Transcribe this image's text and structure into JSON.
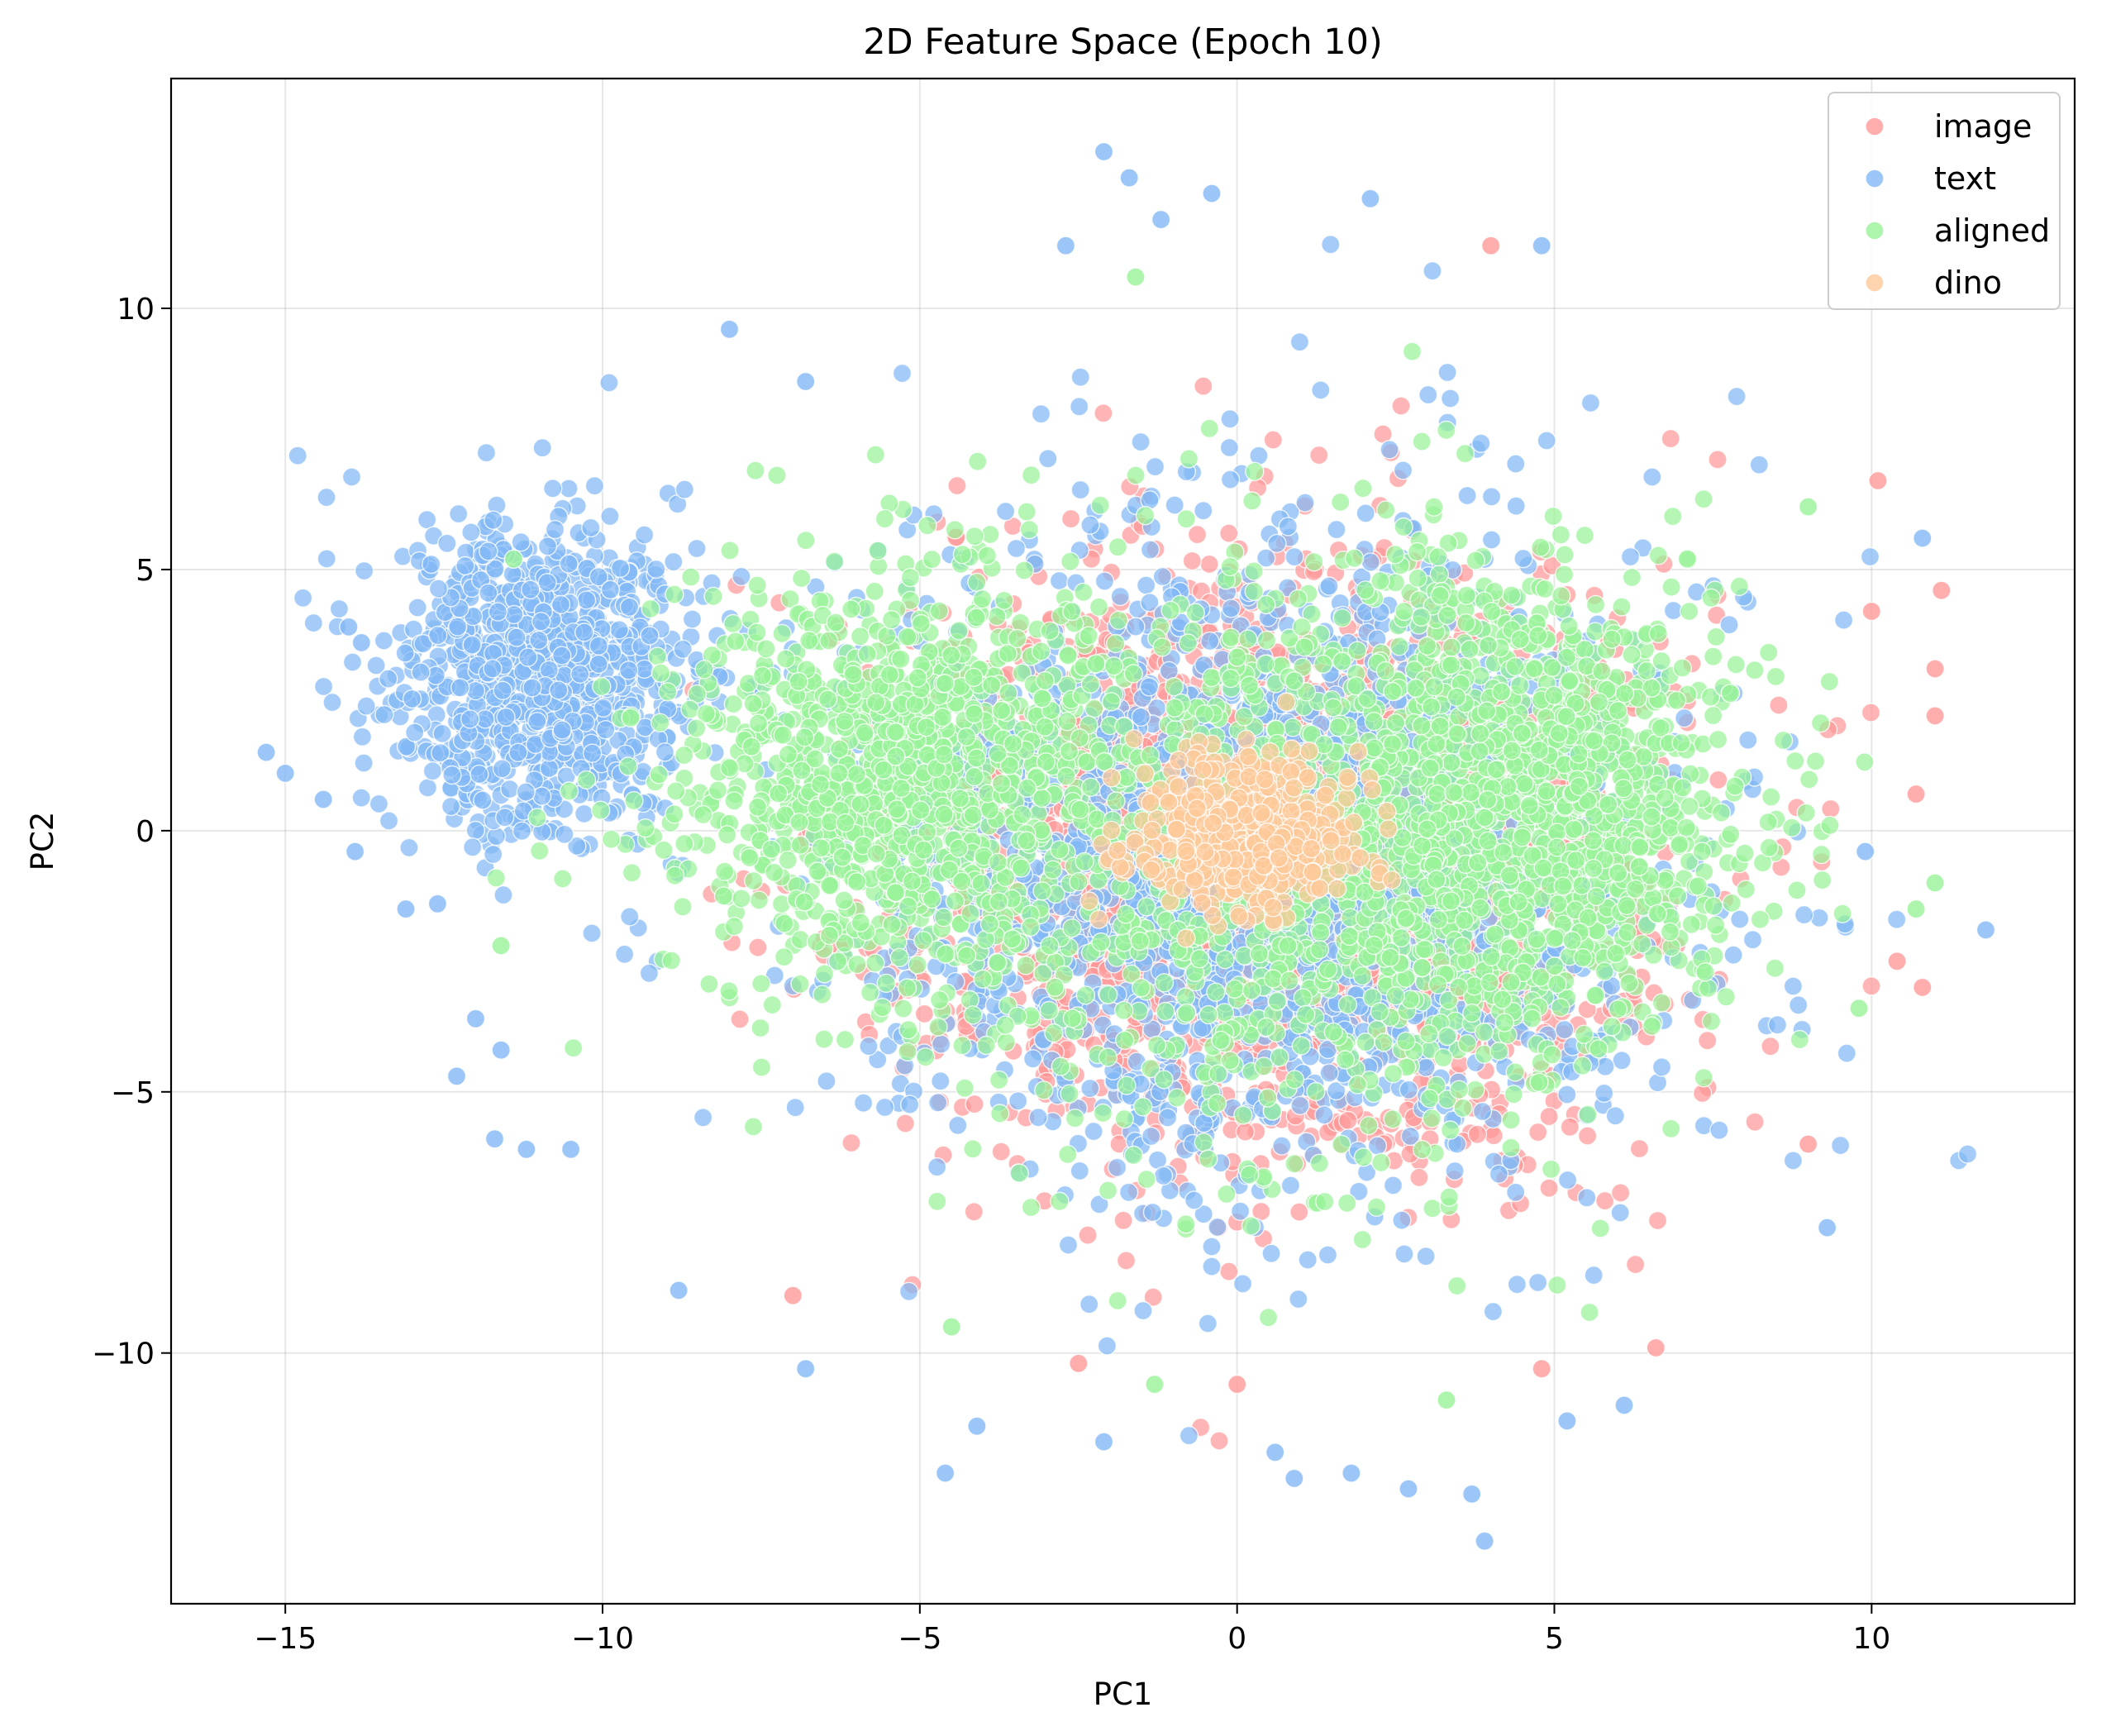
{
  "chart_data": {
    "type": "scatter",
    "title": "2D Feature Space (Epoch 10)",
    "xlabel": "PC1",
    "ylabel": "PC2",
    "xlim": [
      -16.8,
      13.2
    ],
    "ylim": [
      -14.8,
      14.4
    ],
    "xticks": [
      -15,
      -10,
      -5,
      0,
      5,
      10
    ],
    "yticks": [
      -10,
      -5,
      0,
      5,
      10
    ],
    "xtick_labels": [
      "−15",
      "−10",
      "−5",
      "0",
      "5",
      "10"
    ],
    "ytick_labels": [
      "−10",
      "−5",
      "0",
      "5",
      "10"
    ],
    "grid": true,
    "legend_position": "top-right",
    "point_counts_approx": {
      "image": 2600,
      "text": 3000,
      "aligned": 3200,
      "dino": 500
    },
    "series": [
      {
        "name": "image",
        "color": "#ff9999",
        "clusters": [
          {
            "center": [
              0.5,
              -0.5
            ],
            "spread": [
              4.6,
              4.4
            ],
            "weight": 1.0
          }
        ],
        "outliers": [
          [
            11.1,
            4.6
          ],
          [
            11.0,
            3.1
          ],
          [
            11.0,
            2.2
          ],
          [
            10.7,
            0.7
          ],
          [
            10.8,
            -3.0
          ],
          [
            10.4,
            -2.5
          ],
          [
            10.1,
            6.7
          ],
          [
            10.0,
            4.2
          ],
          [
            6.6,
            -9.9
          ],
          [
            -7.0,
            -8.9
          ],
          [
            -2.5,
            -10.2
          ],
          [
            4.8,
            -10.3
          ],
          [
            4.0,
            11.2
          ],
          [
            0.0,
            -10.6
          ],
          [
            9.0,
            -6.0
          ]
        ]
      },
      {
        "name": "text",
        "color": "#82b8f5",
        "clusters": [
          {
            "center": [
              0.5,
              -0.5
            ],
            "spread": [
              5.2,
              5.0
            ],
            "weight": 0.7
          },
          {
            "center": [
              -11.0,
              3.0
            ],
            "spread": [
              2.0,
              2.5
            ],
            "weight": 0.3
          }
        ],
        "outliers": [
          [
            -15.3,
            1.5
          ],
          [
            -15.0,
            1.1
          ],
          [
            -14.4,
            0.6
          ],
          [
            -13.9,
            -0.4
          ],
          [
            -14.0,
            3.9
          ],
          [
            -13.8,
            3.6
          ],
          [
            -13.1,
            -1.5
          ],
          [
            -12.6,
            -1.4
          ],
          [
            -12.0,
            -3.6
          ],
          [
            -11.6,
            -4.2
          ],
          [
            -11.7,
            -5.9
          ],
          [
            -11.2,
            -6.1
          ],
          [
            -10.5,
            -6.1
          ],
          [
            -12.3,
            -4.7
          ],
          [
            -2.1,
            13.0
          ],
          [
            -1.7,
            12.5
          ],
          [
            -0.4,
            12.2
          ],
          [
            2.1,
            12.1
          ],
          [
            4.8,
            11.2
          ],
          [
            -1.2,
            11.7
          ],
          [
            -2.7,
            11.2
          ],
          [
            11.8,
            -1.9
          ],
          [
            10.8,
            5.6
          ],
          [
            9.9,
            -0.4
          ],
          [
            9.3,
            -7.6
          ],
          [
            3.9,
            -13.6
          ],
          [
            3.7,
            -12.7
          ],
          [
            0.9,
            -12.4
          ],
          [
            0.6,
            -11.9
          ],
          [
            1.8,
            -12.3
          ],
          [
            2.7,
            -12.6
          ],
          [
            -4.6,
            -12.3
          ],
          [
            -4.1,
            -11.4
          ],
          [
            -6.8,
            -10.3
          ],
          [
            -8.8,
            -8.8
          ],
          [
            -2.1,
            -11.7
          ],
          [
            5.2,
            -11.3
          ],
          [
            6.1,
            -11.0
          ],
          [
            -8.0,
            9.6
          ],
          [
            -6.8,
            8.6
          ]
        ]
      },
      {
        "name": "aligned",
        "color": "#99f399",
        "clusters": [
          {
            "center": [
              -5.5,
              1.0
            ],
            "spread": [
              3.0,
              3.2
            ],
            "weight": 0.35
          },
          {
            "center": [
              4.5,
              0.5
            ],
            "spread": [
              2.8,
              3.5
            ],
            "weight": 0.4
          },
          {
            "center": [
              0.5,
              -1.0
            ],
            "spread": [
              4.2,
              4.8
            ],
            "weight": 0.25
          }
        ],
        "outliers": [
          [
            11.0,
            -1.0
          ],
          [
            10.7,
            -1.5
          ],
          [
            9.8,
            -3.4
          ],
          [
            -11.6,
            -2.2
          ],
          [
            -11.4,
            5.2
          ],
          [
            -1.6,
            10.6
          ],
          [
            3.3,
            -10.9
          ],
          [
            -4.5,
            -9.5
          ],
          [
            -1.3,
            -10.6
          ],
          [
            9.0,
            6.2
          ]
        ]
      },
      {
        "name": "dino",
        "color": "#fdc998",
        "clusters": [
          {
            "center": [
              0.0,
              0.0
            ],
            "spread": [
              1.45,
              1.2
            ],
            "weight": 1.0
          }
        ],
        "outliers": []
      }
    ]
  }
}
